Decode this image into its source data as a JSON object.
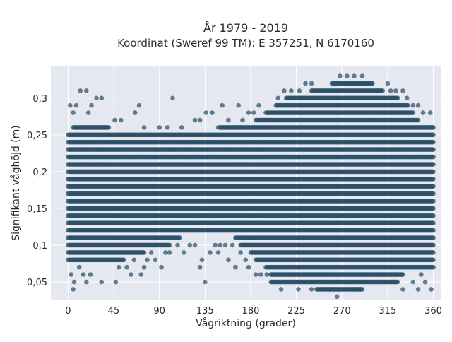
{
  "chart_data": {
    "type": "scatter",
    "title": "År 1979 - 2019",
    "subtitle": "Koordinat (Sweref 99 TM): E 357251, N 6170160",
    "xlabel": "Vågriktning (grader)",
    "ylabel": "Signifikant våghöjd (m)",
    "xlim": [
      -17,
      368
    ],
    "ylim": [
      0.025,
      0.344
    ],
    "x_ticks": [
      0,
      45,
      90,
      135,
      180,
      225,
      270,
      315,
      360
    ],
    "x_tick_labels": [
      "0",
      "45",
      "90",
      "135",
      "180",
      "225",
      "270",
      "315",
      "360"
    ],
    "y_ticks": [
      0.05,
      0.1,
      0.15,
      0.2,
      0.25,
      0.3
    ],
    "y_tick_labels": [
      "0,05",
      "0,1",
      "0,15",
      "0,2",
      "0,25",
      "0,3"
    ],
    "grid": true,
    "marker_color": "#2d5068",
    "background_color": "#e5e8f0",
    "band_heights": [
      0.04,
      0.05,
      0.06,
      0.07,
      0.08,
      0.09,
      0.1,
      0.11,
      0.12,
      0.13,
      0.14,
      0.15,
      0.16,
      0.17,
      0.18,
      0.19,
      0.2,
      0.21,
      0.22,
      0.23,
      0.24,
      0.25,
      0.26,
      0.27,
      0.28,
      0.29,
      0.3,
      0.31,
      0.32,
      0.33
    ],
    "dense_ranges": [
      {
        "y": 0.04,
        "x": [
          245,
          290
        ]
      },
      {
        "y": 0.05,
        "x": [
          200,
          325
        ]
      },
      {
        "y": 0.06,
        "x": [
          200,
          330
        ]
      },
      {
        "y": 0.07,
        "x": [
          195,
          360
        ]
      },
      {
        "y": 0.08,
        "x": [
          0,
          55
        ]
      },
      {
        "y": 0.08,
        "x": [
          185,
          360
        ]
      },
      {
        "y": 0.09,
        "x": [
          0,
          75
        ]
      },
      {
        "y": 0.09,
        "x": [
          180,
          360
        ]
      },
      {
        "y": 0.1,
        "x": [
          0,
          100
        ]
      },
      {
        "y": 0.1,
        "x": [
          170,
          360
        ]
      },
      {
        "y": 0.11,
        "x": [
          0,
          110
        ]
      },
      {
        "y": 0.11,
        "x": [
          165,
          360
        ]
      },
      {
        "y": 0.12,
        "x": [
          0,
          360
        ]
      },
      {
        "y": 0.13,
        "x": [
          0,
          360
        ]
      },
      {
        "y": 0.14,
        "x": [
          0,
          360
        ]
      },
      {
        "y": 0.15,
        "x": [
          0,
          360
        ]
      },
      {
        "y": 0.16,
        "x": [
          0,
          360
        ]
      },
      {
        "y": 0.17,
        "x": [
          0,
          360
        ]
      },
      {
        "y": 0.18,
        "x": [
          0,
          360
        ]
      },
      {
        "y": 0.19,
        "x": [
          0,
          360
        ]
      },
      {
        "y": 0.2,
        "x": [
          0,
          360
        ]
      },
      {
        "y": 0.21,
        "x": [
          0,
          360
        ]
      },
      {
        "y": 0.22,
        "x": [
          0,
          360
        ]
      },
      {
        "y": 0.23,
        "x": [
          0,
          360
        ]
      },
      {
        "y": 0.24,
        "x": [
          0,
          360
        ]
      },
      {
        "y": 0.25,
        "x": [
          0,
          360
        ]
      },
      {
        "y": 0.26,
        "x": [
          5,
          40
        ]
      },
      {
        "y": 0.26,
        "x": [
          150,
          360
        ]
      },
      {
        "y": 0.27,
        "x": [
          185,
          345
        ]
      },
      {
        "y": 0.28,
        "x": [
          195,
          340
        ]
      },
      {
        "y": 0.29,
        "x": [
          205,
          335
        ]
      },
      {
        "y": 0.3,
        "x": [
          215,
          325
        ]
      },
      {
        "y": 0.31,
        "x": [
          240,
          310
        ]
      },
      {
        "y": 0.32,
        "x": [
          260,
          300
        ]
      }
    ],
    "scattered_points": [
      [
        2,
        0.29
      ],
      [
        5,
        0.28
      ],
      [
        8,
        0.29
      ],
      [
        12,
        0.31
      ],
      [
        18,
        0.31
      ],
      [
        20,
        0.28
      ],
      [
        23,
        0.29
      ],
      [
        28,
        0.3
      ],
      [
        33,
        0.3
      ],
      [
        46,
        0.27
      ],
      [
        52,
        0.27
      ],
      [
        66,
        0.28
      ],
      [
        70,
        0.29
      ],
      [
        75,
        0.26
      ],
      [
        90,
        0.26
      ],
      [
        98,
        0.26
      ],
      [
        103,
        0.3
      ],
      [
        112,
        0.26
      ],
      [
        125,
        0.27
      ],
      [
        130,
        0.27
      ],
      [
        136,
        0.28
      ],
      [
        142,
        0.28
      ],
      [
        148,
        0.26
      ],
      [
        152,
        0.29
      ],
      [
        158,
        0.27
      ],
      [
        168,
        0.29
      ],
      [
        172,
        0.27
      ],
      [
        178,
        0.28
      ],
      [
        183,
        0.28
      ],
      [
        188,
        0.29
      ],
      [
        207,
        0.3
      ],
      [
        213,
        0.31
      ],
      [
        220,
        0.31
      ],
      [
        228,
        0.31
      ],
      [
        234,
        0.32
      ],
      [
        240,
        0.32
      ],
      [
        268,
        0.33
      ],
      [
        275,
        0.33
      ],
      [
        282,
        0.33
      ],
      [
        290,
        0.33
      ],
      [
        315,
        0.32
      ],
      [
        318,
        0.31
      ],
      [
        323,
        0.31
      ],
      [
        330,
        0.31
      ],
      [
        334,
        0.3
      ],
      [
        340,
        0.29
      ],
      [
        345,
        0.29
      ],
      [
        350,
        0.28
      ],
      [
        357,
        0.28
      ],
      [
        6,
        0.05
      ],
      [
        3,
        0.06
      ],
      [
        5,
        0.04
      ],
      [
        11,
        0.07
      ],
      [
        15,
        0.06
      ],
      [
        18,
        0.05
      ],
      [
        22,
        0.06
      ],
      [
        33,
        0.05
      ],
      [
        47,
        0.05
      ],
      [
        50,
        0.07
      ],
      [
        58,
        0.07
      ],
      [
        62,
        0.06
      ],
      [
        65,
        0.08
      ],
      [
        72,
        0.06
      ],
      [
        75,
        0.07
      ],
      [
        78,
        0.08
      ],
      [
        82,
        0.09
      ],
      [
        86,
        0.08
      ],
      [
        92,
        0.07
      ],
      [
        96,
        0.09
      ],
      [
        100,
        0.09
      ],
      [
        108,
        0.1
      ],
      [
        114,
        0.09
      ],
      [
        120,
        0.1
      ],
      [
        125,
        0.1
      ],
      [
        130,
        0.07
      ],
      [
        132,
        0.08
      ],
      [
        135,
        0.05
      ],
      [
        140,
        0.09
      ],
      [
        145,
        0.1
      ],
      [
        150,
        0.1
      ],
      [
        155,
        0.1
      ],
      [
        162,
        0.1
      ],
      [
        148,
        0.09
      ],
      [
        158,
        0.08
      ],
      [
        165,
        0.07
      ],
      [
        170,
        0.09
      ],
      [
        175,
        0.08
      ],
      [
        178,
        0.07
      ],
      [
        185,
        0.06
      ],
      [
        190,
        0.06
      ],
      [
        196,
        0.06
      ],
      [
        210,
        0.04
      ],
      [
        227,
        0.04
      ],
      [
        240,
        0.04
      ],
      [
        258,
        0.04
      ],
      [
        265,
        0.03
      ],
      [
        285,
        0.04
      ],
      [
        330,
        0.04
      ],
      [
        340,
        0.05
      ],
      [
        345,
        0.04
      ],
      [
        348,
        0.06
      ],
      [
        352,
        0.05
      ],
      [
        358,
        0.04
      ]
    ]
  }
}
